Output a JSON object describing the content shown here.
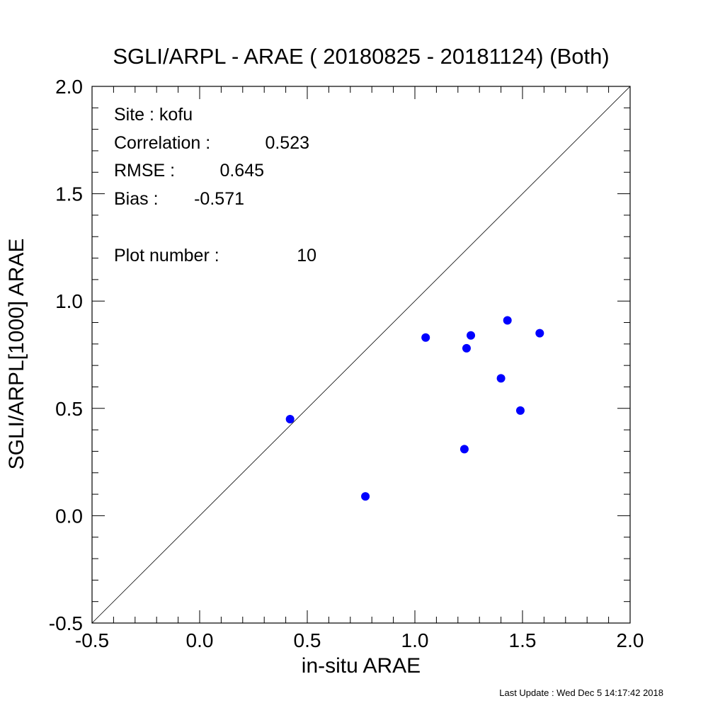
{
  "chart_data": {
    "type": "scatter",
    "title": "SGLI/ARPL - ARAE ( 20180825 - 20181124) (Both)",
    "xlabel": "in-situ ARAE",
    "ylabel": "SGLI/ARPL[1000]    ARAE",
    "xlim": [
      -0.5,
      2.0
    ],
    "ylim": [
      -0.5,
      2.0
    ],
    "x_ticks": [
      "-0.5",
      "0.0",
      "0.5",
      "1.0",
      "1.5",
      "2.0"
    ],
    "y_ticks": [
      "-0.5",
      "0.0",
      "0.5",
      "1.0",
      "1.5",
      "2.0"
    ],
    "grid": false,
    "reference_line": "1:1",
    "point_color": "#0000ff",
    "points": [
      {
        "x": 0.42,
        "y": 0.45
      },
      {
        "x": 0.77,
        "y": 0.09
      },
      {
        "x": 1.05,
        "y": 0.83
      },
      {
        "x": 1.23,
        "y": 0.31
      },
      {
        "x": 1.24,
        "y": 0.78
      },
      {
        "x": 1.26,
        "y": 0.84
      },
      {
        "x": 1.4,
        "y": 0.64
      },
      {
        "x": 1.43,
        "y": 0.91
      },
      {
        "x": 1.49,
        "y": 0.49
      },
      {
        "x": 1.58,
        "y": 0.85
      }
    ],
    "stats": {
      "site_label": "Site : kofu",
      "correlation_label": "Correlation :",
      "correlation_value": "0.523",
      "rmse_label": "RMSE :",
      "rmse_value": "0.645",
      "bias_label": "Bias :",
      "bias_value": "-0.571",
      "plot_number_label": "Plot number :",
      "plot_number_value": "10"
    }
  },
  "footer": {
    "last_update": "Last Update : Wed Dec  5 14:17:42 2018"
  }
}
